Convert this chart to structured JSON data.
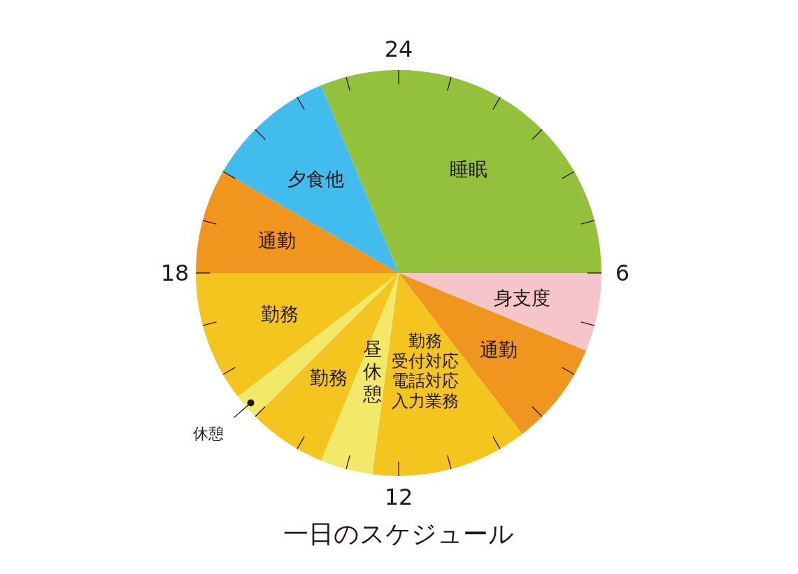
{
  "chart_data": {
    "type": "pie",
    "title": "一日のスケジュール",
    "categories": [
      "睡眠",
      "身支度",
      "通勤",
      "勤務受付対応電話対応入力業務",
      "昼休憩",
      "勤務",
      "休憩",
      "勤務",
      "通勤",
      "夕食他"
    ],
    "values": [
      31.25,
      6.25,
      8.33,
      12.5,
      4.17,
      6.25,
      2.08,
      10.42,
      8.33,
      10.42
    ],
    "colors": [
      "#93c13b",
      "#f5c6c9",
      "#f0951e",
      "#f4c41f",
      "#f2e96b",
      "#f4c41f",
      "#f2e96b",
      "#f4c41f",
      "#f0951e",
      "#41bcec"
    ],
    "annotations": [
      "24",
      "6",
      "12",
      "18"
    ]
  }
}
